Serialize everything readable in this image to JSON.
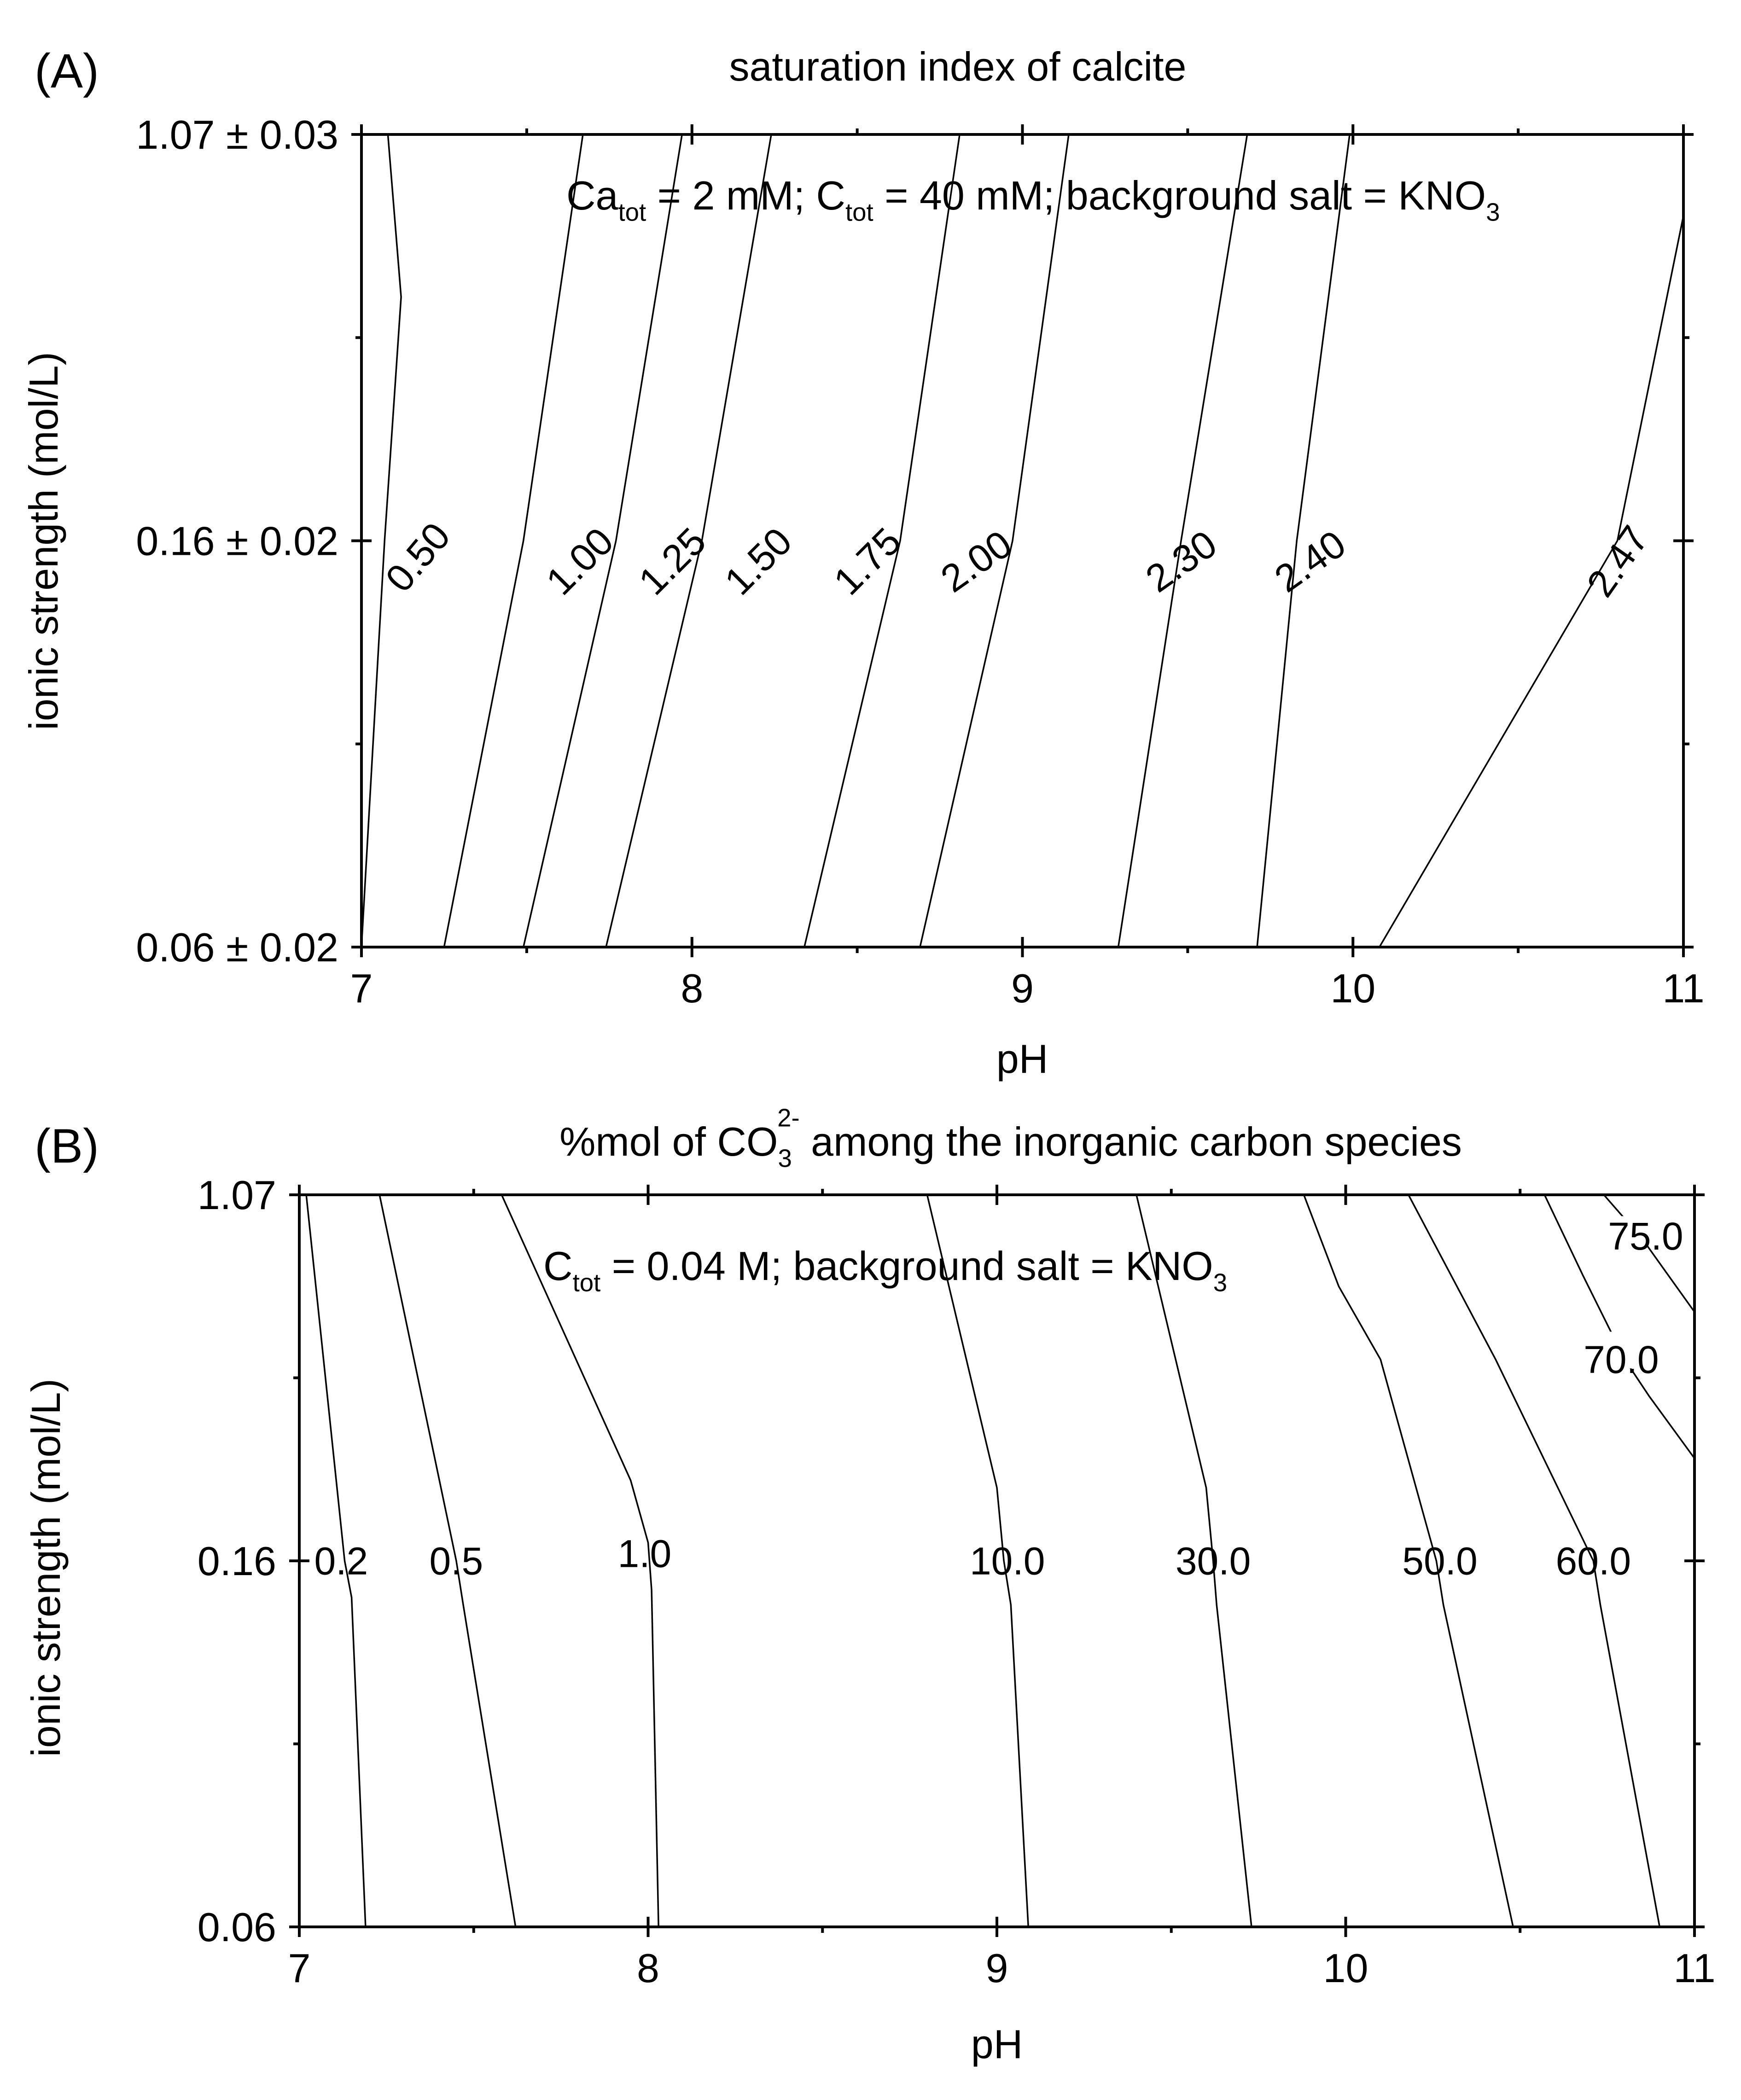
{
  "chart_data": [
    {
      "panel": "(A)",
      "type": "contour",
      "title": "saturation index of calcite",
      "annotation": {
        "parts": [
          {
            "t": "Ca"
          },
          {
            "t": "tot",
            "sub": true
          },
          {
            "t": " = 2 mM; C"
          },
          {
            "t": "tot",
            "sub": true
          },
          {
            "t": " = 40 mM; background salt = KNO"
          },
          {
            "t": "3",
            "sub": true
          }
        ]
      },
      "xlabel": "pH",
      "ylabel": "ionic strength (mol/L)",
      "xlim": [
        7,
        11
      ],
      "ylim": [
        0,
        2
      ],
      "x_ticks": [
        {
          "value": 7,
          "label": "7"
        },
        {
          "value": 8,
          "label": "8"
        },
        {
          "value": 9,
          "label": "9"
        },
        {
          "value": 10,
          "label": "10"
        },
        {
          "value": 11,
          "label": "11"
        }
      ],
      "x_minor_ticks": [
        7.5,
        8.5,
        9.5,
        10.5
      ],
      "y_ticks": [
        {
          "value": 0,
          "label": "0.06 ± 0.02"
        },
        {
          "value": 1,
          "label": "0.16 ± 0.02"
        },
        {
          "value": 2,
          "label": "1.07 ± 0.03"
        }
      ],
      "y_minor_ticks": [
        0.5,
        1.5
      ],
      "contours": [
        {
          "level": "0.50",
          "points": [
            [
              7.0,
              0.0
            ],
            [
              7.07,
              1.0
            ],
            [
              7.12,
              1.6
            ],
            [
              7.08,
              2.0
            ]
          ],
          "label_at": [
            7.17,
            0.96
          ],
          "label_angle": -50
        },
        {
          "level": "1.00",
          "points": [
            [
              7.25,
              0.0
            ],
            [
              7.49,
              1.0
            ],
            [
              7.67,
              2.0
            ]
          ],
          "label_at": [
            7.66,
            0.95
          ],
          "label_angle": -45
        },
        {
          "level": "1.25",
          "points": [
            [
              7.49,
              0.0
            ],
            [
              7.77,
              1.0
            ],
            [
              7.97,
              2.0
            ]
          ],
          "label_at": [
            7.94,
            0.95
          ],
          "label_angle": -45
        },
        {
          "level": "1.50",
          "points": [
            [
              7.74,
              0.0
            ],
            [
              8.03,
              1.0
            ],
            [
              8.24,
              2.0
            ]
          ],
          "label_at": [
            8.2,
            0.95
          ],
          "label_angle": -45
        },
        {
          "level": "1.75",
          "points": [
            [
              8.34,
              0.0
            ],
            [
              8.63,
              1.0
            ],
            [
              8.81,
              2.0
            ]
          ],
          "label_at": [
            8.53,
            0.95
          ],
          "label_angle": -45
        },
        {
          "level": "2.00",
          "points": [
            [
              8.69,
              0.0
            ],
            [
              8.97,
              1.0
            ],
            [
              9.14,
              2.0
            ]
          ],
          "label_at": [
            8.86,
            0.95
          ],
          "label_angle": -35
        },
        {
          "level": "2.30",
          "points": [
            [
              9.29,
              0.0
            ],
            [
              9.48,
              1.0
            ],
            [
              9.68,
              2.0
            ]
          ],
          "label_at": [
            9.48,
            0.95
          ],
          "label_angle": -35
        },
        {
          "level": "2.40",
          "points": [
            [
              9.71,
              0.0
            ],
            [
              9.83,
              1.0
            ],
            [
              9.99,
              2.0
            ]
          ],
          "label_at": [
            9.87,
            0.95
          ],
          "label_angle": -35
        },
        {
          "level": "2.47",
          "points": [
            [
              10.08,
              0.0
            ],
            [
              10.8,
              1.0
            ],
            [
              11.0,
              1.8
            ]
          ],
          "label_at": [
            10.8,
            0.95
          ],
          "label_angle": -55
        }
      ]
    },
    {
      "panel": "(B)",
      "type": "contour",
      "title": {
        "parts": [
          {
            "t": "%mol of CO"
          },
          {
            "t": "3",
            "sub": true
          },
          {
            "t": "2-",
            "sup": true
          },
          {
            "t": " among the inorganic carbon species"
          }
        ]
      },
      "annotation": {
        "parts": [
          {
            "t": "C"
          },
          {
            "t": "tot",
            "sub": true
          },
          {
            "t": " = 0.04 M; background salt = KNO"
          },
          {
            "t": "3",
            "sub": true
          }
        ]
      },
      "xlabel": "pH",
      "ylabel": "ionic strength (mol/L)",
      "xlim": [
        7,
        11
      ],
      "ylim": [
        0,
        2
      ],
      "x_ticks": [
        {
          "value": 7,
          "label": "7"
        },
        {
          "value": 8,
          "label": "8"
        },
        {
          "value": 9,
          "label": "9"
        },
        {
          "value": 10,
          "label": "10"
        },
        {
          "value": 11,
          "label": "11"
        }
      ],
      "x_minor_ticks": [
        7.5,
        8.5,
        9.5,
        10.5
      ],
      "y_ticks": [
        {
          "value": 0,
          "label": "0.06"
        },
        {
          "value": 1,
          "label": "0.16"
        },
        {
          "value": 2,
          "label": "1.07"
        }
      ],
      "y_minor_ticks": [
        0.5,
        1.5
      ],
      "contours": [
        {
          "level": "0.2",
          "points": [
            [
              7.19,
              0.0
            ],
            [
              7.15,
              0.9
            ],
            [
              7.13,
              1.0
            ],
            [
              7.02,
              2.0
            ]
          ],
          "label_at": [
            7.12,
            1.0
          ]
        },
        {
          "level": "0.5",
          "points": [
            [
              7.62,
              0.0
            ],
            [
              7.47,
              0.88
            ],
            [
              7.45,
              1.0
            ],
            [
              7.23,
              2.0
            ]
          ],
          "label_at": [
            7.45,
            1.0
          ]
        },
        {
          "level": "1.0",
          "points": [
            [
              8.03,
              0.0
            ],
            [
              8.01,
              0.92
            ],
            [
              8.0,
              1.05
            ],
            [
              7.95,
              1.22
            ],
            [
              7.58,
              2.0
            ]
          ],
          "label_at": [
            7.99,
            1.02
          ]
        },
        {
          "level": "10.0",
          "points": [
            [
              9.09,
              0.0
            ],
            [
              9.04,
              0.88
            ],
            [
              9.02,
              1.0
            ],
            [
              9.0,
              1.2
            ],
            [
              8.8,
              2.0
            ]
          ],
          "label_at": [
            9.03,
            1.0
          ]
        },
        {
          "level": "30.0",
          "points": [
            [
              9.73,
              0.0
            ],
            [
              9.63,
              0.88
            ],
            [
              9.62,
              1.0
            ],
            [
              9.6,
              1.2
            ],
            [
              9.4,
              2.0
            ]
          ],
          "label_at": [
            9.62,
            1.0
          ]
        },
        {
          "level": "50.0",
          "points": [
            [
              10.48,
              0.0
            ],
            [
              10.28,
              0.88
            ],
            [
              10.26,
              1.0
            ],
            [
              10.1,
              1.55
            ],
            [
              9.98,
              1.75
            ],
            [
              9.88,
              2.0
            ]
          ],
          "label_at": [
            10.27,
            1.0
          ]
        },
        {
          "level": "60.0",
          "points": [
            [
              10.9,
              0.0
            ],
            [
              10.73,
              0.88
            ],
            [
              10.71,
              1.0
            ],
            [
              10.43,
              1.55
            ],
            [
              10.18,
              2.0
            ]
          ],
          "label_at": [
            10.71,
            1.0
          ]
        },
        {
          "level": "70.0",
          "points": [
            [
              11.0,
              1.28
            ],
            [
              10.87,
              1.45
            ],
            [
              10.8,
              1.55
            ],
            [
              10.68,
              1.78
            ],
            [
              10.57,
              2.0
            ]
          ],
          "label_at": [
            10.79,
            1.55
          ],
          "label_bg": true
        },
        {
          "level": "75.0",
          "points": [
            [
              11.0,
              1.68
            ],
            [
              10.91,
              1.8
            ],
            [
              10.85,
              1.88
            ],
            [
              10.74,
              2.0
            ]
          ],
          "label_at": [
            10.86,
            1.88
          ],
          "label_size": 68,
          "label_bg": true
        }
      ]
    }
  ]
}
